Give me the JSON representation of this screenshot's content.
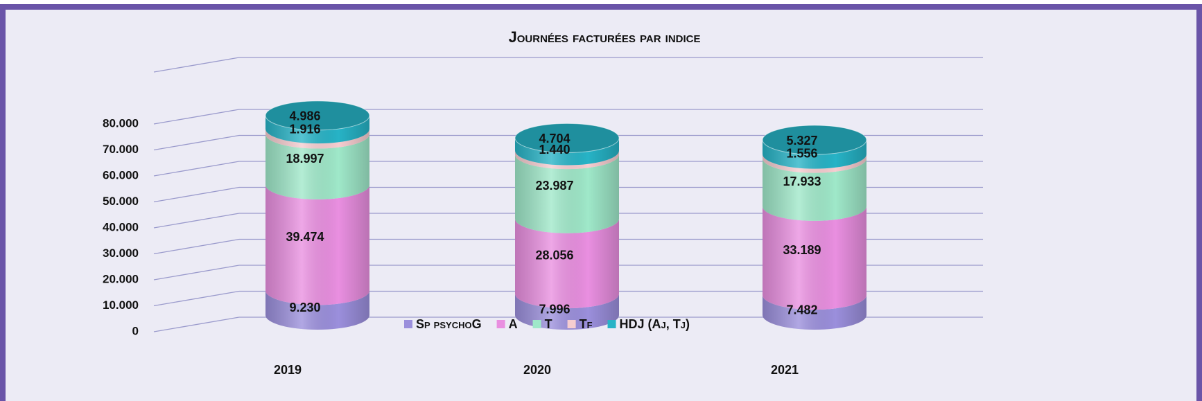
{
  "chart_data": {
    "type": "bar3d",
    "title": "Journées facturées par indice",
    "categories": [
      "2019",
      "2020",
      "2021"
    ],
    "series": [
      {
        "name": "Sp psychoG",
        "color": "#9b8fdc",
        "values": [
          9230,
          7996,
          7482
        ],
        "value_labels": [
          "9.230",
          "7.996",
          "7.482"
        ]
      },
      {
        "name": "A",
        "color": "#e98fe0",
        "values": [
          39474,
          28056,
          33189
        ],
        "value_labels": [
          "39.474",
          "28.056",
          "33.189"
        ]
      },
      {
        "name": "T",
        "color": "#9fe8c9",
        "values": [
          18997,
          23987,
          17933
        ],
        "value_labels": [
          "18.997",
          "23.987",
          "17.933"
        ]
      },
      {
        "name": "Tf",
        "color": "#f6cdd0",
        "values": [
          1916,
          1440,
          1556
        ],
        "value_labels": [
          "1.916",
          "1.440",
          "1.556"
        ]
      },
      {
        "name": "HDJ (Aj, Tj)",
        "color": "#27b3c6",
        "values": [
          4986,
          4704,
          5327
        ],
        "value_labels": [
          "4.986",
          "4.704",
          "5.327"
        ]
      }
    ],
    "ylim": [
      0,
      100000
    ],
    "yticks": [
      0,
      {
        "value": 10000,
        "label": "10.000"
      },
      {
        "value": 20000,
        "label": "20.000"
      },
      {
        "value": 30000,
        "label": "30.000"
      },
      {
        "value": 40000,
        "label": "40.000"
      },
      {
        "value": 50000,
        "label": "50.000"
      },
      {
        "value": 60000,
        "label": "60.000"
      },
      {
        "value": 70000,
        "label": "70.000"
      },
      {
        "value": 80000,
        "label": "80.000"
      }
    ],
    "grid": true,
    "legend": "bottom"
  }
}
